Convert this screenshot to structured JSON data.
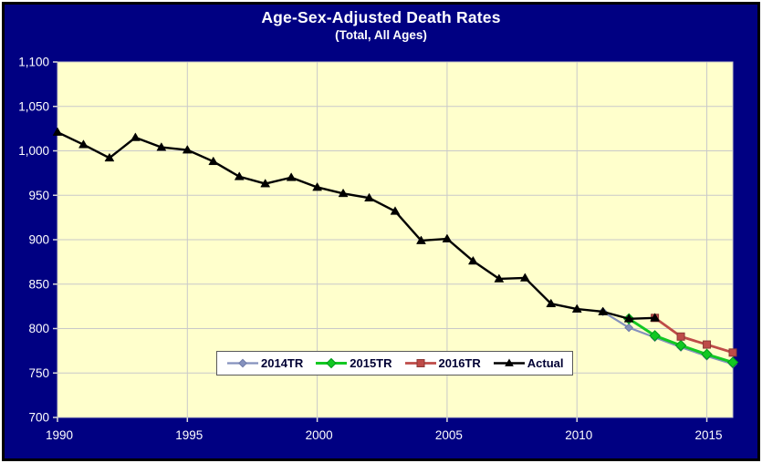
{
  "frame": {
    "outer_edge_color": "#FFFFFF",
    "border_color": "#000000",
    "background": "#000082"
  },
  "chart_data": {
    "type": "line",
    "title": "Age-Sex-Adjusted Death Rates",
    "subtitle": "(Total, All Ages)",
    "title_color": "#FFFFFF",
    "plot_background": "#FFFFCC",
    "grid": true,
    "gridline_color": "#C9C9C9",
    "tick_color": "#D9D9D9",
    "axis_label_color": "#FFFFFF",
    "xlim": [
      1990,
      2016
    ],
    "ylim": [
      700,
      1100
    ],
    "x_ticks": [
      1990,
      1995,
      2000,
      2005,
      2010,
      2015
    ],
    "y_ticks": [
      700,
      750,
      800,
      850,
      900,
      950,
      1000,
      1050,
      1100
    ],
    "y_tick_labels": [
      "700",
      "750",
      "800",
      "850",
      "900",
      "950",
      "1,000",
      "1,050",
      "1,100"
    ],
    "legend": {
      "position": "bottom-center-inset",
      "background": "#FFFFFF",
      "border_color": "#595959",
      "text_color": "#000033"
    },
    "series": [
      {
        "name": "2014TR",
        "color": "#8591BD",
        "marker": "diamond",
        "marker_size": 3.2,
        "marker_stroke": "#6E7AA8",
        "line_width": 2.2,
        "x": [
          2011,
          2012,
          2013,
          2014,
          2015,
          2016
        ],
        "values": [
          819,
          801,
          790,
          779,
          769,
          760
        ]
      },
      {
        "name": "2015TR",
        "color": "#12C822",
        "marker": "diamond",
        "marker_size": 4.5,
        "marker_stroke": "#009A1A",
        "line_width": 3,
        "x": [
          2012,
          2013,
          2014,
          2015,
          2016
        ],
        "values": [
          811,
          792,
          781,
          771,
          762
        ]
      },
      {
        "name": "2016TR",
        "color": "#BE4B48",
        "marker": "square",
        "marker_size": 4,
        "marker_stroke": "#8C3836",
        "line_width": 2.8,
        "x": [
          2013,
          2014,
          2015,
          2016
        ],
        "values": [
          812,
          791,
          782,
          773
        ]
      },
      {
        "name": "Actual",
        "color": "#000000",
        "marker": "triangle",
        "marker_size": 5,
        "marker_stroke": "#000000",
        "line_width": 2.4,
        "x": [
          1990,
          1991,
          1992,
          1993,
          1994,
          1995,
          1996,
          1997,
          1998,
          1999,
          2000,
          2001,
          2002,
          2003,
          2004,
          2005,
          2006,
          2007,
          2008,
          2009,
          2010,
          2011,
          2012,
          2013
        ],
        "values": [
          1021,
          1007,
          992,
          1015,
          1004,
          1001,
          988,
          971,
          963,
          970,
          959,
          952,
          947,
          932,
          899,
          901,
          876,
          856,
          857,
          828,
          822,
          819,
          811,
          812
        ]
      }
    ]
  }
}
